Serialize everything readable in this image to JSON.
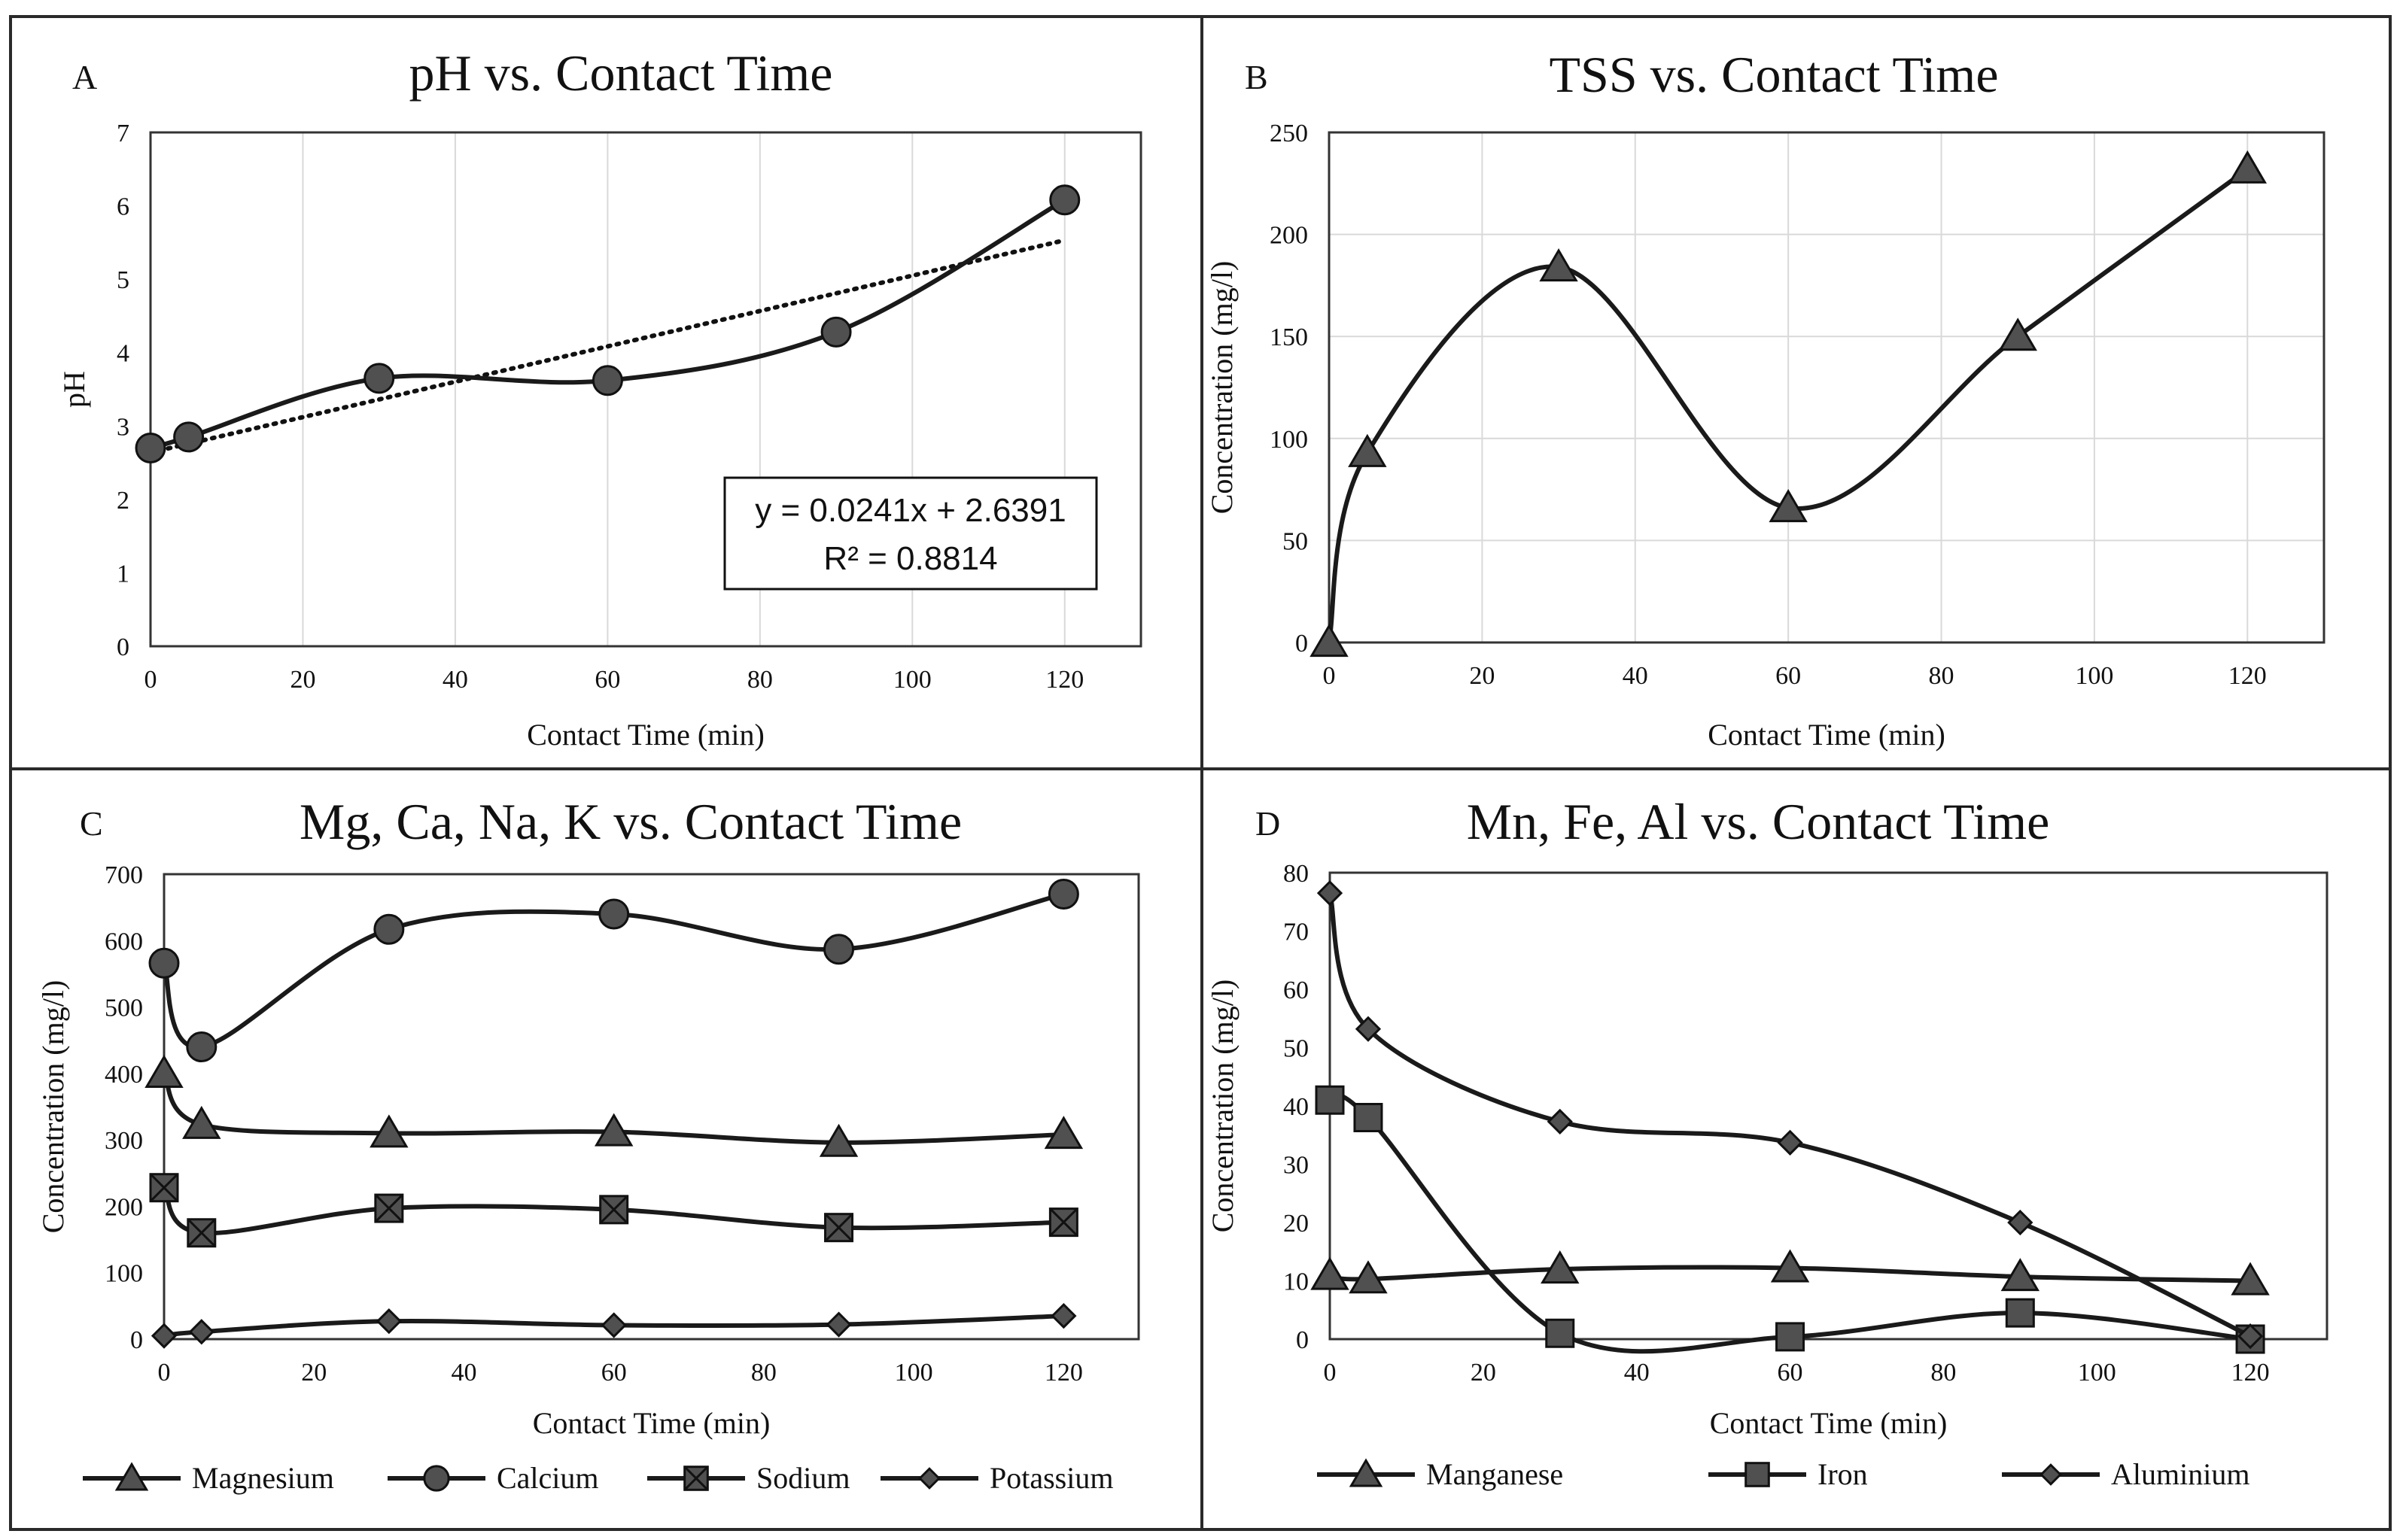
{
  "colors": {
    "line": "#1a1a1a",
    "marker": "#505050",
    "grid": "#d9d9d9",
    "frame": "#2a2a2a"
  },
  "chart_data": [
    {
      "panel": "A",
      "type": "line",
      "title": "pH vs. Contact Time",
      "xlabel": "Contact Time (min)",
      "ylabel": "pH",
      "xlim": [
        0,
        130
      ],
      "ylim": [
        0,
        7
      ],
      "xticks": [
        0,
        20,
        40,
        60,
        80,
        100,
        120
      ],
      "yticks": [
        0,
        1,
        2,
        3,
        4,
        5,
        6,
        7
      ],
      "grid": "vertical",
      "x": [
        0,
        5,
        30,
        60,
        90,
        120
      ],
      "series": [
        {
          "name": "pH",
          "marker": "circle",
          "values": [
            2.7,
            2.85,
            3.65,
            3.62,
            4.28,
            6.08
          ]
        }
      ],
      "trendline": {
        "slope": 0.0241,
        "intercept": 2.6391,
        "x_range": [
          0,
          120
        ]
      },
      "annotation": {
        "equation": "y = 0.0241x + 2.6391",
        "r2": "R² = 0.8814"
      }
    },
    {
      "panel": "B",
      "type": "line",
      "title": "TSS vs. Contact Time",
      "xlabel": "Contact Time (min)",
      "ylabel": "Concentration (mg/l)",
      "xlim": [
        0,
        130
      ],
      "ylim": [
        0,
        250
      ],
      "xticks": [
        0,
        20,
        40,
        60,
        80,
        100,
        120
      ],
      "yticks": [
        0,
        50,
        100,
        150,
        200,
        250
      ],
      "grid": "both",
      "x": [
        0,
        5,
        30,
        60,
        90,
        120
      ],
      "series": [
        {
          "name": "TSS",
          "marker": "triangle",
          "values": [
            0,
            93,
            184,
            66,
            150,
            232
          ]
        }
      ]
    },
    {
      "panel": "C",
      "type": "line",
      "title": "Mg, Ca, Na, K vs. Contact Time",
      "xlabel": "Contact Time (min)",
      "ylabel": "Concentration (mg/l)",
      "xlim": [
        0,
        130
      ],
      "ylim": [
        0,
        700
      ],
      "xticks": [
        0,
        20,
        40,
        60,
        80,
        100,
        120
      ],
      "yticks": [
        0,
        100,
        200,
        300,
        400,
        500,
        600,
        700
      ],
      "grid": "none",
      "x": [
        0,
        5,
        30,
        60,
        90,
        120
      ],
      "series": [
        {
          "name": "Magnesium",
          "marker": "triangle",
          "values": [
            400,
            323,
            310,
            312,
            296,
            308
          ]
        },
        {
          "name": "Calcium",
          "marker": "circle",
          "values": [
            566,
            440,
            617,
            640,
            587,
            670
          ]
        },
        {
          "name": "Sodium",
          "marker": "xsquare",
          "values": [
            228,
            160,
            197,
            195,
            168,
            176
          ]
        },
        {
          "name": "Potassium",
          "marker": "diamond",
          "values": [
            5,
            11,
            27,
            21,
            22,
            35
          ]
        }
      ],
      "legend_position": "bottom"
    },
    {
      "panel": "D",
      "type": "line",
      "title": "Mn, Fe, Al vs. Contact Time",
      "xlabel": "Contact Time (min)",
      "ylabel": "Concentration (mg/l)",
      "xlim": [
        0,
        130
      ],
      "ylim": [
        0,
        80
      ],
      "xticks": [
        0,
        20,
        40,
        60,
        80,
        100,
        120
      ],
      "yticks": [
        0,
        10,
        20,
        30,
        40,
        50,
        60,
        70,
        80
      ],
      "grid": "none",
      "x": [
        0,
        5,
        30,
        60,
        90,
        120
      ],
      "series": [
        {
          "name": "Manganese",
          "marker": "triangle",
          "values": [
            10.9,
            10.3,
            12.0,
            12.2,
            10.7,
            10.0
          ]
        },
        {
          "name": "Iron",
          "marker": "square",
          "values": [
            41,
            38,
            1,
            0.4,
            4.5,
            0
          ]
        },
        {
          "name": "Aluminium",
          "marker": "diamond",
          "values": [
            76.5,
            53.2,
            37.3,
            33.7,
            20.0,
            0.5
          ]
        }
      ],
      "legend_position": "bottom"
    }
  ]
}
